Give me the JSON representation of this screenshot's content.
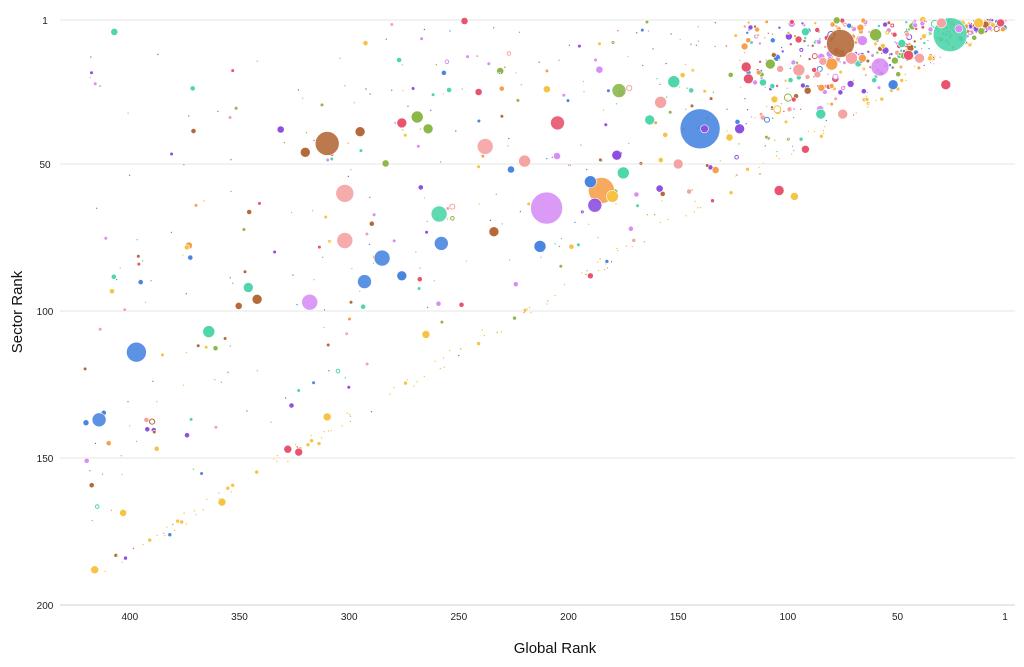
{
  "chart_data": {
    "type": "scatter",
    "xlabel": "Global Rank",
    "ylabel": "Sector Rank",
    "xlim": [
      425,
      1
    ],
    "ylim": [
      1,
      200
    ],
    "x_ticks": [
      400,
      350,
      300,
      250,
      200,
      150,
      100,
      50,
      1
    ],
    "y_ticks": [
      1,
      50,
      100,
      150,
      200
    ],
    "x_reversed": true,
    "y_reversed": true,
    "grid": "horizontal",
    "legend": "none",
    "colors": {
      "orange": "#f6a04d",
      "pink": "#f5a3a3",
      "red": "#e8546e",
      "green": "#8cb84a",
      "teal": "#4fd6aa",
      "blue": "#4a86e0",
      "purple": "#8f4fe0",
      "violet": "#d78ff5",
      "brown": "#b46a3a",
      "gold": "#f6c444"
    },
    "highlighted_points": [
      {
        "x": 26,
        "y": 6,
        "size": 17,
        "color": "teal"
      },
      {
        "x": 76,
        "y": 9,
        "size": 14,
        "color": "brown"
      },
      {
        "x": 140,
        "y": 38,
        "size": 20,
        "color": "blue"
      },
      {
        "x": 210,
        "y": 65,
        "size": 16,
        "color": "violet"
      },
      {
        "x": 185,
        "y": 59,
        "size": 13,
        "color": "orange"
      },
      {
        "x": 310,
        "y": 43,
        "size": 12,
        "color": "brown"
      },
      {
        "x": 397,
        "y": 114,
        "size": 10,
        "color": "blue"
      },
      {
        "x": 414,
        "y": 137,
        "size": 7,
        "color": "blue"
      },
      {
        "x": 302,
        "y": 60,
        "size": 9,
        "color": "pink"
      },
      {
        "x": 302,
        "y": 76,
        "size": 8,
        "color": "pink"
      },
      {
        "x": 318,
        "y": 97,
        "size": 8,
        "color": "violet"
      },
      {
        "x": 285,
        "y": 82,
        "size": 8,
        "color": "blue"
      },
      {
        "x": 293,
        "y": 90,
        "size": 7,
        "color": "blue"
      },
      {
        "x": 259,
        "y": 67,
        "size": 8,
        "color": "teal"
      },
      {
        "x": 258,
        "y": 77,
        "size": 7,
        "color": "blue"
      },
      {
        "x": 238,
        "y": 44,
        "size": 8,
        "color": "pink"
      },
      {
        "x": 220,
        "y": 49,
        "size": 6,
        "color": "pink"
      },
      {
        "x": 213,
        "y": 78,
        "size": 6,
        "color": "blue"
      },
      {
        "x": 205,
        "y": 36,
        "size": 7,
        "color": "red"
      },
      {
        "x": 190,
        "y": 56,
        "size": 6,
        "color": "blue"
      },
      {
        "x": 188,
        "y": 64,
        "size": 7,
        "color": "purple"
      },
      {
        "x": 180,
        "y": 61,
        "size": 6,
        "color": "gold"
      },
      {
        "x": 175,
        "y": 53,
        "size": 6,
        "color": "teal"
      },
      {
        "x": 178,
        "y": 47,
        "size": 5,
        "color": "purple"
      },
      {
        "x": 152,
        "y": 22,
        "size": 6,
        "color": "teal"
      },
      {
        "x": 158,
        "y": 29,
        "size": 6,
        "color": "pink"
      },
      {
        "x": 163,
        "y": 35,
        "size": 5,
        "color": "teal"
      },
      {
        "x": 177,
        "y": 25,
        "size": 7,
        "color": "green"
      },
      {
        "x": 122,
        "y": 38,
        "size": 5,
        "color": "purple"
      },
      {
        "x": 104,
        "y": 59,
        "size": 5,
        "color": "red"
      },
      {
        "x": 58,
        "y": 17,
        "size": 9,
        "color": "violet"
      },
      {
        "x": 52,
        "y": 23,
        "size": 5,
        "color": "blue"
      },
      {
        "x": 28,
        "y": 23,
        "size": 5,
        "color": "red"
      },
      {
        "x": 13,
        "y": 2,
        "size": 5,
        "color": "gold"
      },
      {
        "x": 3,
        "y": 2,
        "size": 4,
        "color": "red"
      },
      {
        "x": 60,
        "y": 6,
        "size": 6,
        "color": "green"
      },
      {
        "x": 71,
        "y": 14,
        "size": 6,
        "color": "pink"
      },
      {
        "x": 80,
        "y": 16,
        "size": 6,
        "color": "orange"
      },
      {
        "x": 95,
        "y": 18,
        "size": 6,
        "color": "pink"
      },
      {
        "x": 85,
        "y": 33,
        "size": 5,
        "color": "teal"
      },
      {
        "x": 75,
        "y": 33,
        "size": 5,
        "color": "pink"
      },
      {
        "x": 118,
        "y": 21,
        "size": 5,
        "color": "red"
      },
      {
        "x": 119,
        "y": 17,
        "size": 5,
        "color": "red"
      },
      {
        "x": 92,
        "y": 5,
        "size": 4,
        "color": "teal"
      },
      {
        "x": 108,
        "y": 16,
        "size": 5,
        "color": "green"
      },
      {
        "x": 269,
        "y": 34,
        "size": 6,
        "color": "green"
      },
      {
        "x": 276,
        "y": 36,
        "size": 5,
        "color": "red"
      },
      {
        "x": 264,
        "y": 38,
        "size": 5,
        "color": "green"
      },
      {
        "x": 295,
        "y": 39,
        "size": 5,
        "color": "brown"
      },
      {
        "x": 320,
        "y": 46,
        "size": 5,
        "color": "brown"
      },
      {
        "x": 364,
        "y": 107,
        "size": 6,
        "color": "teal"
      },
      {
        "x": 346,
        "y": 92,
        "size": 5,
        "color": "teal"
      },
      {
        "x": 342,
        "y": 96,
        "size": 5,
        "color": "brown"
      },
      {
        "x": 276,
        "y": 88,
        "size": 5,
        "color": "blue"
      },
      {
        "x": 234,
        "y": 73,
        "size": 5,
        "color": "brown"
      },
      {
        "x": 138,
        "y": 38,
        "size": 4,
        "color": "purple"
      },
      {
        "x": 150,
        "y": 50,
        "size": 5,
        "color": "pink"
      },
      {
        "x": 97,
        "y": 61,
        "size": 4,
        "color": "gold"
      },
      {
        "x": 92,
        "y": 45,
        "size": 4,
        "color": "red"
      },
      {
        "x": 84,
        "y": 15,
        "size": 4,
        "color": "pink"
      },
      {
        "x": 30,
        "y": 2,
        "size": 5,
        "color": "pink"
      },
      {
        "x": 22,
        "y": 4,
        "size": 4,
        "color": "violet"
      },
      {
        "x": 45,
        "y": 13,
        "size": 5,
        "color": "red"
      },
      {
        "x": 40,
        "y": 14,
        "size": 5,
        "color": "pink"
      },
      {
        "x": 66,
        "y": 8,
        "size": 5,
        "color": "violet"
      },
      {
        "x": 66,
        "y": 14,
        "size": 4,
        "color": "orange"
      },
      {
        "x": 48,
        "y": 9,
        "size": 4,
        "color": "teal"
      },
      {
        "x": 328,
        "y": 147,
        "size": 4,
        "color": "red"
      },
      {
        "x": 323,
        "y": 148,
        "size": 4,
        "color": "red"
      },
      {
        "x": 310,
        "y": 136,
        "size": 4,
        "color": "gold"
      },
      {
        "x": 265,
        "y": 108,
        "size": 4,
        "color": "gold"
      },
      {
        "x": 358,
        "y": 165,
        "size": 4,
        "color": "gold"
      },
      {
        "x": 416,
        "y": 188,
        "size": 4,
        "color": "gold"
      },
      {
        "x": 420,
        "y": 138,
        "size": 3,
        "color": "blue"
      },
      {
        "x": 190,
        "y": 88,
        "size": 3,
        "color": "red"
      }
    ],
    "series": []
  }
}
